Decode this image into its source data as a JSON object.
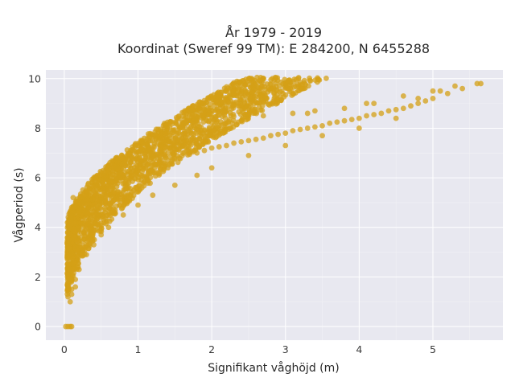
{
  "chart_data": {
    "type": "scatter",
    "title": "År 1979 - 2019",
    "subtitle": "Koordinat (Sweref 99 TM): E 284200, N 6455288",
    "xlabel": "Signifikant våghöjd (m)",
    "ylabel": "Vågperiod (s)",
    "xlim": [
      -0.25,
      5.95
    ],
    "ylim": [
      -0.55,
      10.35
    ],
    "xticks": [
      0,
      1,
      2,
      3,
      4,
      5
    ],
    "yticks": [
      0,
      2,
      4,
      6,
      8,
      10
    ],
    "grid": true,
    "background_color": "#e8e8f0",
    "marker_color": "#d4a017",
    "marker_opacity": 0.75,
    "series": [
      {
        "x": [
          0.05,
          0.07,
          0.1,
          0.12,
          0.15,
          0.18,
          0.2,
          0.22,
          0.25,
          0.28,
          0.3,
          0.33,
          0.35,
          0.38,
          0.4,
          0.45,
          0.5,
          0.55,
          0.6,
          0.65,
          0.7,
          0.75,
          0.8,
          0.9,
          1.0,
          1.1,
          1.2,
          1.3,
          1.4,
          1.5,
          1.6,
          1.7,
          1.8,
          1.9,
          2.0,
          2.1,
          2.2,
          2.3,
          2.4,
          2.5,
          2.6,
          2.7,
          2.8,
          2.9,
          3.0,
          3.1,
          3.2,
          3.3,
          3.4,
          3.5,
          3.6,
          3.7,
          3.8,
          3.9,
          4.0,
          4.1,
          4.2,
          4.3,
          4.4,
          4.5,
          4.6,
          4.7,
          4.8,
          4.9,
          5.0,
          5.2,
          5.4,
          5.6,
          0.05,
          0.1,
          0.15,
          0.2,
          0.3,
          0.4,
          0.5,
          0.6,
          0.8,
          1.0,
          1.2,
          1.5,
          1.8,
          2.0,
          2.5,
          3.0,
          3.5,
          4.0,
          4.5,
          0.08,
          0.1,
          0.12,
          0.5,
          0.8,
          0.9,
          1.3,
          1.4,
          2.2,
          3.3,
          4.1,
          4.6,
          5.0,
          5.3,
          5.65,
          0.02,
          0.05,
          0.08,
          0.1,
          0.1,
          0.2,
          0.3,
          0.4,
          0.6,
          0.7,
          0.9,
          1.1,
          1.3,
          1.6,
          1.9,
          2.1,
          2.4,
          2.7,
          3.1,
          3.4,
          3.8,
          4.2,
          4.8,
          5.1,
          0.08,
          0.1,
          0.15
        ],
        "y": [
          1.6,
          2.1,
          2.6,
          2.9,
          3.3,
          3.6,
          3.9,
          4.1,
          4.3,
          4.5,
          4.7,
          4.8,
          4.95,
          5.1,
          5.2,
          5.35,
          5.5,
          5.6,
          5.7,
          5.8,
          5.9,
          6.0,
          6.1,
          6.2,
          6.3,
          6.4,
          6.5,
          6.6,
          6.7,
          6.8,
          6.9,
          6.95,
          7.0,
          7.1,
          7.2,
          7.25,
          7.3,
          7.4,
          7.45,
          7.5,
          7.55,
          7.6,
          7.7,
          7.75,
          7.8,
          7.9,
          7.95,
          8.0,
          8.05,
          8.1,
          8.2,
          8.25,
          8.3,
          8.35,
          8.4,
          8.5,
          8.55,
          8.6,
          8.7,
          8.75,
          8.8,
          8.9,
          9.0,
          9.1,
          9.2,
          9.4,
          9.6,
          9.8,
          1.2,
          1.5,
          1.9,
          2.3,
          2.9,
          3.3,
          3.7,
          4.0,
          4.5,
          4.9,
          5.3,
          5.7,
          6.1,
          6.4,
          6.9,
          7.3,
          7.7,
          8.0,
          8.4,
          4.5,
          4.8,
          5.2,
          6.2,
          6.8,
          7.1,
          7.3,
          7.5,
          8.0,
          8.6,
          9.0,
          9.3,
          9.5,
          9.7,
          9.8,
          0.0,
          0.0,
          0.0,
          0.0,
          3.0,
          4.6,
          5.4,
          6.0,
          6.5,
          6.8,
          7.0,
          7.0,
          7.2,
          7.6,
          7.9,
          8.1,
          8.3,
          8.5,
          8.6,
          8.7,
          8.8,
          9.0,
          9.2,
          9.5,
          1.0,
          1.3,
          1.6
        ]
      }
    ]
  }
}
